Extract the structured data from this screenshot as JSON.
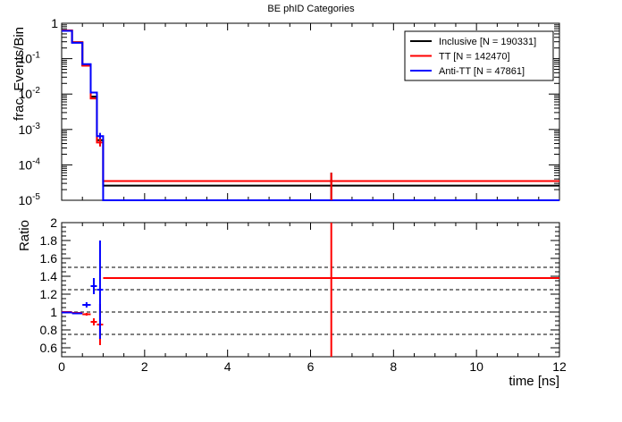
{
  "chart_data": [
    {
      "type": "line",
      "title": "BE phID Categories",
      "ylabel": "frac. Events/Bin",
      "y_scale": "log",
      "ylim": [
        1e-05,
        1
      ],
      "xlim": [
        0,
        12
      ],
      "y_ticks": [
        {
          "v": 1,
          "base": "1",
          "exp": ""
        },
        {
          "v": 0.1,
          "base": "10",
          "exp": "-1"
        },
        {
          "v": 0.01,
          "base": "10",
          "exp": "-2"
        },
        {
          "v": 0.001,
          "base": "10",
          "exp": "-3"
        },
        {
          "v": 0.0001,
          "base": "10",
          "exp": "-4"
        },
        {
          "v": 1e-05,
          "base": "10",
          "exp": "-5"
        }
      ],
      "legend_position": "top-right",
      "legend": [
        {
          "label": "Inclusive [N = 190331]",
          "color": "#000000"
        },
        {
          "label": "TT [N = 142470]",
          "color": "#ff0000"
        },
        {
          "label": "Anti-TT [N = 47861]",
          "color": "#0000ff"
        }
      ],
      "series": [
        {
          "color": "#000000",
          "bins": [
            {
              "x0": 0,
              "x1": 0.25,
              "y": 0.62
            },
            {
              "x0": 0.25,
              "x1": 0.5,
              "y": 0.29
            },
            {
              "x0": 0.5,
              "x1": 0.7,
              "y": 0.065
            },
            {
              "x0": 0.7,
              "x1": 0.85,
              "y": 0.0085
            },
            {
              "x0": 0.85,
              "x1": 1.0,
              "y": 0.0005
            },
            {
              "x0": 1.0,
              "x1": 12,
              "y": 2.6e-05
            }
          ]
        },
        {
          "color": "#ff0000",
          "bins": [
            {
              "x0": 0,
              "x1": 0.25,
              "y": 0.63
            },
            {
              "x0": 0.25,
              "x1": 0.5,
              "y": 0.29
            },
            {
              "x0": 0.5,
              "x1": 0.7,
              "y": 0.063
            },
            {
              "x0": 0.7,
              "x1": 0.85,
              "y": 0.0075
            },
            {
              "x0": 0.85,
              "x1": 1.0,
              "y": 0.00043
            },
            {
              "x0": 1.0,
              "x1": 12,
              "y": 3.5e-05
            }
          ]
        },
        {
          "color": "#0000ff",
          "bins": [
            {
              "x0": 0,
              "x1": 0.25,
              "y": 0.61
            },
            {
              "x0": 0.25,
              "x1": 0.5,
              "y": 0.28
            },
            {
              "x0": 0.5,
              "x1": 0.7,
              "y": 0.07
            },
            {
              "x0": 0.7,
              "x1": 0.85,
              "y": 0.011
            },
            {
              "x0": 0.85,
              "x1": 1.0,
              "y": 0.00065
            },
            {
              "x0": 1.0,
              "x1": 12,
              "y": 1e-05
            }
          ]
        }
      ],
      "error_bars": [
        {
          "color": "#000000",
          "x": 6.5,
          "ylo": 1e-05,
          "yhi": 6e-05
        },
        {
          "color": "#ff0000",
          "x": 6.5,
          "ylo": 1e-05,
          "yhi": 6e-05
        },
        {
          "color": "#0000ff",
          "x": 0.925,
          "ylo": 0.0004,
          "yhi": 0.0008
        },
        {
          "color": "#ff0000",
          "x": 0.925,
          "ylo": 0.00033,
          "yhi": 0.00055
        }
      ]
    },
    {
      "type": "scatter",
      "xlabel": "time [ns]",
      "ylabel": "Ratio",
      "xlim": [
        0,
        12
      ],
      "ylim": [
        0.5,
        2
      ],
      "x_ticks": [
        "0",
        "2",
        "4",
        "6",
        "8",
        "10",
        "12"
      ],
      "y_ticks": [
        "0.6",
        "0.8",
        "1",
        "1.2",
        "1.4",
        "1.6",
        "1.8",
        "2"
      ],
      "reference_lines": [
        0.75,
        1.0,
        1.25,
        1.5
      ],
      "series": [
        {
          "color": "#ff0000",
          "points": [
            {
              "x": 0.125,
              "xerr": 0.125,
              "y": 1.0,
              "ylo": 1.0,
              "yhi": 1.0
            },
            {
              "x": 0.375,
              "xerr": 0.125,
              "y": 0.99,
              "ylo": 0.985,
              "yhi": 0.995
            },
            {
              "x": 0.6,
              "xerr": 0.1,
              "y": 0.975,
              "ylo": 0.96,
              "yhi": 0.99
            },
            {
              "x": 0.775,
              "xerr": 0.075,
              "y": 0.89,
              "ylo": 0.85,
              "yhi": 0.93
            },
            {
              "x": 0.925,
              "xerr": 0.075,
              "y": 0.86,
              "ylo": 0.63,
              "yhi": 1.09
            },
            {
              "x": 6.5,
              "xerr": 5.5,
              "y": 1.38,
              "ylo": 0.5,
              "yhi": 2.0
            }
          ]
        },
        {
          "color": "#0000ff",
          "points": [
            {
              "x": 0.125,
              "xerr": 0.125,
              "y": 0.995,
              "ylo": 0.99,
              "yhi": 1.0
            },
            {
              "x": 0.375,
              "xerr": 0.125,
              "y": 0.985,
              "ylo": 0.98,
              "yhi": 0.99
            },
            {
              "x": 0.6,
              "xerr": 0.1,
              "y": 1.08,
              "ylo": 1.05,
              "yhi": 1.11
            },
            {
              "x": 0.775,
              "xerr": 0.075,
              "y": 1.29,
              "ylo": 1.2,
              "yhi": 1.38
            },
            {
              "x": 0.925,
              "xerr": 0.075,
              "y": 1.25,
              "ylo": 0.7,
              "yhi": 1.8
            }
          ]
        }
      ]
    }
  ]
}
